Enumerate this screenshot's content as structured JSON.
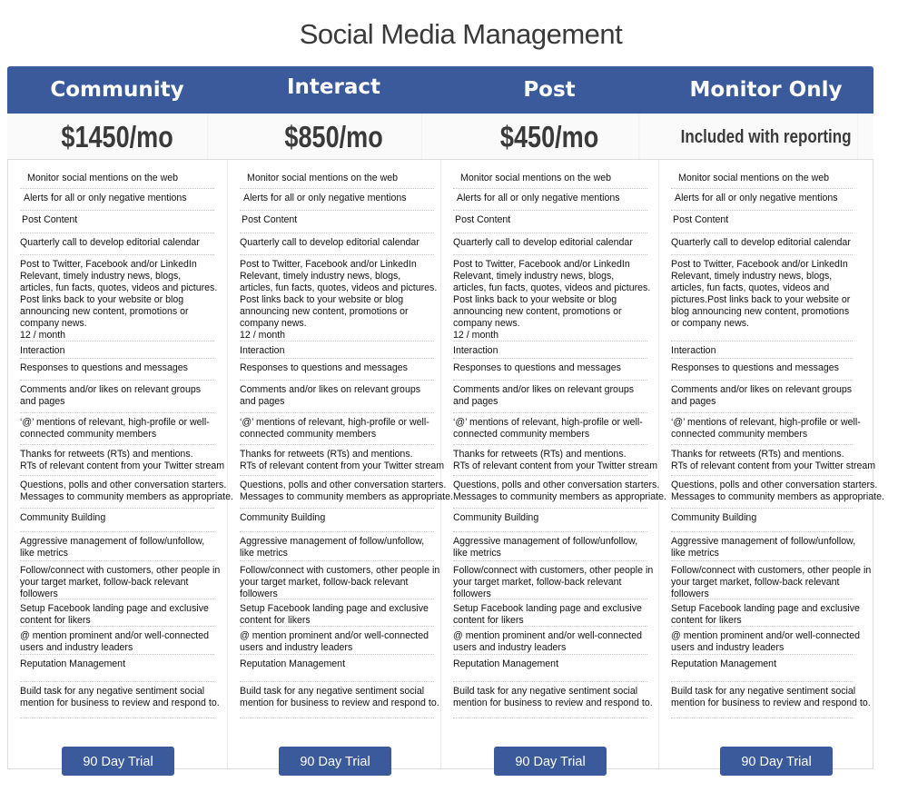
{
  "title": "Social Media Management",
  "accent_color": "#3a5a9b",
  "plans": [
    {
      "name": "Community",
      "price": "$1450/mo",
      "cta": "90 Day Trial",
      "features": [
        "Monitor social mentions on the web",
        "Alerts for all or only negative mentions",
        "Post Content",
        "Quarterly call to develop editorial calendar",
        "Post to Twitter, Facebook and/or LinkedIn\nRelevant, timely industry news, blogs,\narticles, fun facts, quotes, videos and pictures.\nPost links back to your website or blog\nannouncing new content, promotions or\ncompany news.\n12 / month",
        "Interaction",
        "Responses to questions and messages",
        "Comments and/or likes on relevant groups\nand pages",
        "‘@’ mentions of relevant, high-profile or well-\nconnected community members",
        "Thanks for retweets (RTs) and mentions.\nRTs of relevant content from your Twitter stream",
        "Questions, polls and other conversation starters.\nMessages to community members as appropriate.",
        "Community Building",
        "Aggressive management of follow/unfollow,\nlike metrics",
        "Follow/connect with customers, other people in\nyour target market, follow-back relevant\nfollowers",
        "Setup Facebook landing page and exclusive\ncontent for likers",
        "@ mention prominent and/or well-connected\nusers and industry leaders",
        "Reputation Management",
        "Build task for any negative sentiment social\nmention for business to review and respond to."
      ]
    },
    {
      "name": "Interact",
      "price": "$850/mo",
      "cta": "90 Day Trial",
      "features": [
        "Monitor social mentions on the web",
        "Alerts for all or only negative mentions",
        "Post Content",
        "Quarterly call to develop editorial calendar",
        "Post to Twitter, Facebook and/or LinkedIn\nRelevant, timely industry news, blogs,\narticles, fun facts, quotes, videos and pictures.\nPost links back to your website or blog\nannouncing new content, promotions or\ncompany news.\n12 / month",
        "Interaction",
        "Responses to questions and messages",
        "Comments and/or likes on relevant groups\nand pages",
        "‘@’ mentions of relevant, high-profile or well-\nconnected community members",
        "Thanks for retweets (RTs) and mentions.\nRTs of relevant content from your Twitter stream",
        "Questions, polls and other conversation starters.\nMessages to community members as appropriate.",
        "Community Building",
        "Aggressive management of follow/unfollow,\nlike metrics",
        "Follow/connect with customers, other people in\nyour target market, follow-back relevant\nfollowers",
        "Setup Facebook landing page and exclusive\ncontent for likers",
        "@ mention prominent and/or well-connected\nusers and industry leaders",
        "Reputation Management",
        "Build task for any negative sentiment social\nmention for business to review and respond to."
      ]
    },
    {
      "name": "Post",
      "price": "$450/mo",
      "cta": "90 Day Trial",
      "features": [
        "Monitor social mentions on the web",
        "Alerts for all or only negative mentions",
        "Post Content",
        "Quarterly call to develop editorial calendar",
        "Post to Twitter, Facebook and/or LinkedIn\nRelevant, timely industry news, blogs,\narticles, fun facts, quotes, videos and pictures.\nPost links back to your website or blog\nannouncing new content, promotions or\ncompany news.\n12 / month",
        "Interaction",
        "Responses to questions and messages",
        "Comments and/or likes on relevant groups\nand pages",
        "‘@’ mentions of relevant, high-profile or well-\nconnected community members",
        "Thanks for retweets (RTs) and mentions.\nRTs of relevant content from your Twitter stream",
        "Questions, polls and other conversation starters.\nMessages to community members as appropriate.",
        "Community Building",
        "Aggressive management of follow/unfollow,\nlike metrics",
        "Follow/connect with customers, other people in\nyour target market, follow-back relevant\nfollowers",
        "Setup Facebook landing page and exclusive\ncontent for likers",
        "@ mention prominent and/or well-connected\nusers and industry leaders",
        "Reputation Management",
        "Build task for any negative sentiment social\nmention for business to review and respond to."
      ]
    },
    {
      "name": "Monitor Only",
      "price": "Included with reporting",
      "cta": "90 Day Trial",
      "features": [
        "Monitor social mentions on the web",
        "Alerts for all or only negative mentions",
        "Post Content",
        "Quarterly call to develop editorial calendar",
        "Post to Twitter, Facebook and/or LinkedIn\nRelevant, timely industry news, blogs,\narticles, fun facts, quotes, videos and\npictures.Post links back to your website or\nblog announcing new content, promotions\nor company news.",
        "Interaction",
        "Responses to questions and messages",
        "Comments and/or likes on relevant groups\nand pages",
        "‘@’ mentions of relevant, high-profile or well-\nconnected community members",
        "Thanks for retweets (RTs) and mentions.\nRTs of relevant content from your Twitter stream",
        "Questions, polls and other conversation starters.\nMessages to community members as appropriate.",
        "Community Building",
        "Aggressive management of follow/unfollow,\nlike metrics",
        "Follow/connect with customers, other people in\nyour target market, follow-back relevant\nfollowers",
        "Setup Facebook landing page and exclusive\ncontent for likers",
        "@ mention prominent and/or well-connected\nusers and industry leaders",
        "Reputation Management",
        "Build task for any negative sentiment social\nmention for business to review and respond to."
      ]
    }
  ]
}
